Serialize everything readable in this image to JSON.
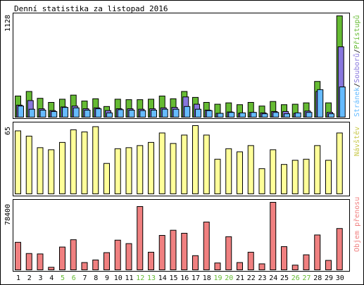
{
  "title": "Denní statistika za listopad 2016",
  "legend": {
    "hits": "Stránek",
    "files": "Souborů",
    "pages": "Přístupů",
    "sep": "/",
    "visits": "Návštěv",
    "volume": "Objem přenosu"
  },
  "colors": {
    "hits": "#66bb33",
    "files": "#8877dd",
    "pages": "#66bbff",
    "visits": "#ffff99",
    "volume": "#f08080",
    "weekend_label": "#66bb33",
    "weekday_label": "#000000"
  },
  "chart_data": [
    {
      "type": "bar",
      "panel": "hits-files-pages",
      "ylabel_max": "1128",
      "ylim": [
        0,
        1128
      ],
      "categories": [
        "1",
        "2",
        "3",
        "4",
        "5",
        "6",
        "7",
        "8",
        "9",
        "10",
        "11",
        "12",
        "13",
        "14",
        "15",
        "16",
        "17",
        "18",
        "19",
        "20",
        "21",
        "22",
        "23",
        "24",
        "25",
        "26",
        "27",
        "28",
        "29",
        "30"
      ],
      "weekend": [
        "5",
        "6",
        "12",
        "13",
        "19",
        "20",
        "26",
        "27"
      ],
      "series": [
        {
          "name": "Přístupů",
          "values": [
            240,
            290,
            215,
            170,
            205,
            250,
            185,
            210,
            125,
            205,
            200,
            200,
            205,
            240,
            210,
            290,
            225,
            170,
            150,
            165,
            145,
            170,
            130,
            180,
            145,
            150,
            165,
            400,
            165,
            1120
          ]
        },
        {
          "name": "Souborů",
          "values": [
            140,
            190,
            100,
            80,
            120,
            130,
            100,
            110,
            80,
            100,
            100,
            95,
            100,
            110,
            115,
            230,
            150,
            85,
            50,
            65,
            50,
            60,
            55,
            70,
            70,
            50,
            75,
            290,
            60,
            780
          ]
        },
        {
          "name": "Stránek",
          "values": [
            130,
            95,
            85,
            70,
            115,
            110,
            85,
            100,
            55,
            90,
            85,
            80,
            85,
            95,
            95,
            125,
            95,
            80,
            50,
            60,
            55,
            60,
            45,
            60,
            45,
            55,
            60,
            310,
            45,
            340
          ]
        }
      ]
    },
    {
      "type": "bar",
      "panel": "visits",
      "ylabel_max": "65",
      "ylim": [
        0,
        65
      ],
      "categories": [
        "1",
        "2",
        "3",
        "4",
        "5",
        "6",
        "7",
        "8",
        "9",
        "10",
        "11",
        "12",
        "13",
        "14",
        "15",
        "16",
        "17",
        "18",
        "19",
        "20",
        "21",
        "22",
        "23",
        "24",
        "25",
        "26",
        "27",
        "28",
        "29",
        "30"
      ],
      "series": [
        {
          "name": "Návštěv",
          "values": [
            60,
            55,
            44,
            42,
            49,
            61,
            59,
            64,
            29,
            43,
            44,
            46,
            49,
            58,
            48,
            56,
            65,
            56,
            33,
            43,
            40,
            46,
            24,
            42,
            28,
            32,
            33,
            46,
            32,
            58
          ]
        }
      ]
    },
    {
      "type": "bar",
      "panel": "volume",
      "ylabel_max": "78400",
      "ylim": [
        0,
        78400
      ],
      "categories": [
        "1",
        "2",
        "3",
        "4",
        "5",
        "6",
        "7",
        "8",
        "9",
        "10",
        "11",
        "12",
        "13",
        "14",
        "15",
        "16",
        "17",
        "18",
        "19",
        "20",
        "21",
        "22",
        "23",
        "24",
        "25",
        "26",
        "27",
        "28",
        "29",
        "30"
      ],
      "series": [
        {
          "name": "Objem přenosu",
          "values": [
            32000,
            19000,
            18500,
            3000,
            26500,
            35000,
            8500,
            11500,
            20000,
            34500,
            30500,
            73500,
            20500,
            40000,
            46000,
            42500,
            16500,
            55500,
            8000,
            38500,
            8500,
            20500,
            7000,
            78400,
            27000,
            5500,
            17500,
            40500,
            11000,
            48000
          ]
        }
      ]
    }
  ]
}
